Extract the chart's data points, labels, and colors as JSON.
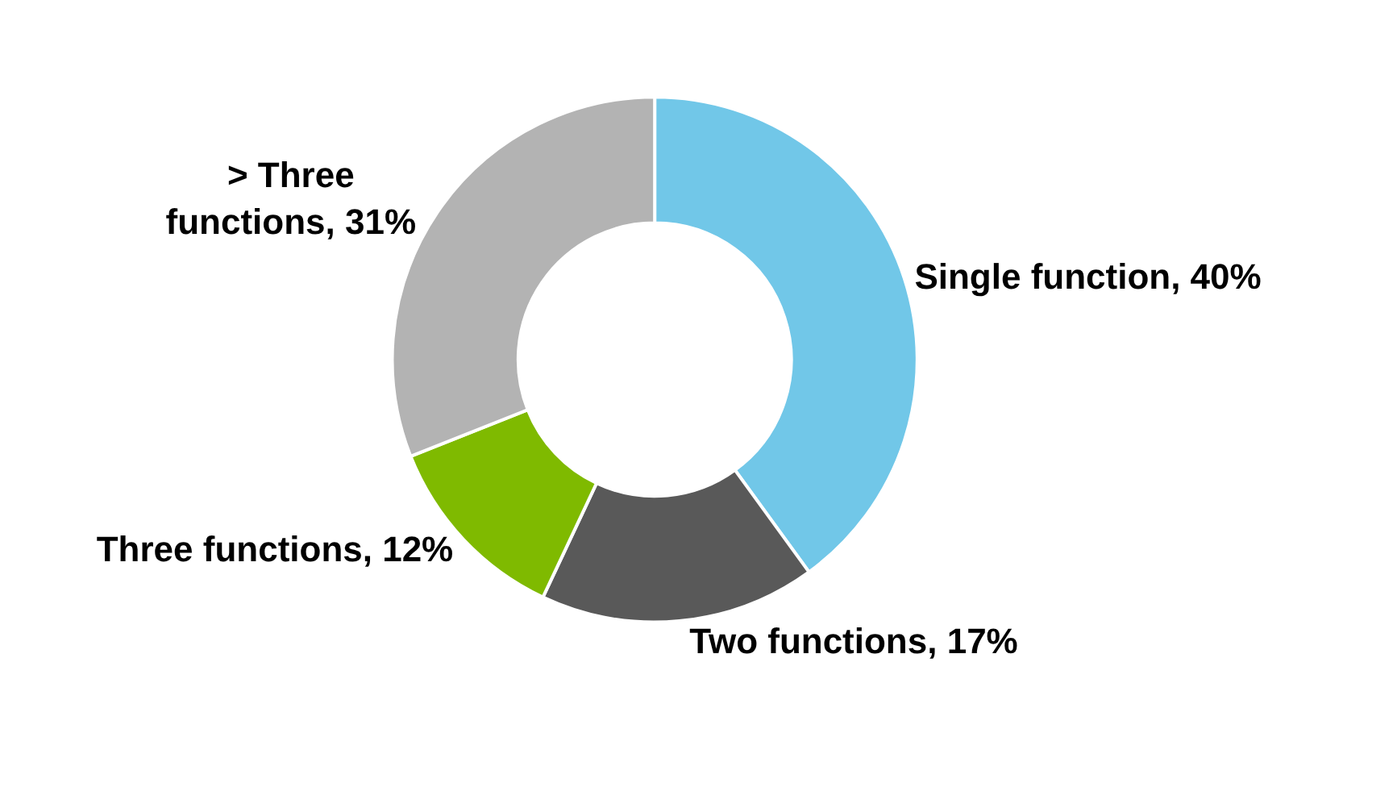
{
  "chart_data": {
    "type": "donut",
    "categories": [
      "Single function",
      "Two functions",
      "Three functions",
      "> Three functions"
    ],
    "values": [
      40,
      17,
      12,
      31
    ],
    "value_labels": [
      "40%",
      "17%",
      "12%",
      "31%"
    ],
    "colors": [
      "#71c7e8",
      "#595959",
      "#7fba00",
      "#b3b3b3"
    ],
    "legend": false
  }
}
